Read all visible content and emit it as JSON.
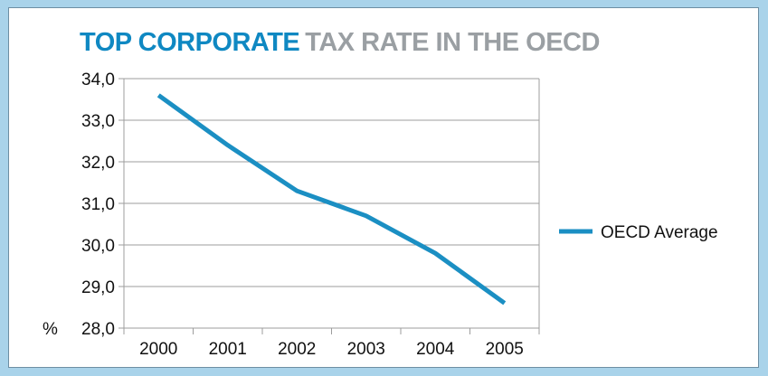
{
  "title": {
    "strong": "TOP CORPORATE",
    "rest": "TAX RATE IN THE OECD"
  },
  "colors": {
    "title_strong": "#0f88c2",
    "title_rest": "#9a9fa3",
    "series": "#1b8fc3",
    "background": "#a9d3ea"
  },
  "chart_data": {
    "type": "line",
    "categories": [
      "2000",
      "2001",
      "2002",
      "2003",
      "2004",
      "2005"
    ],
    "series": [
      {
        "name": "OECD Average",
        "values": [
          33.6,
          32.4,
          31.3,
          30.7,
          29.8,
          28.6
        ]
      }
    ],
    "ylim": [
      28.0,
      34.0
    ],
    "y_ticks": [
      "34,0",
      "33,0",
      "32,0",
      "31,0",
      "30,0",
      "29,0",
      "28,0"
    ],
    "y_unit": "%",
    "grid": true,
    "legend": "right"
  }
}
